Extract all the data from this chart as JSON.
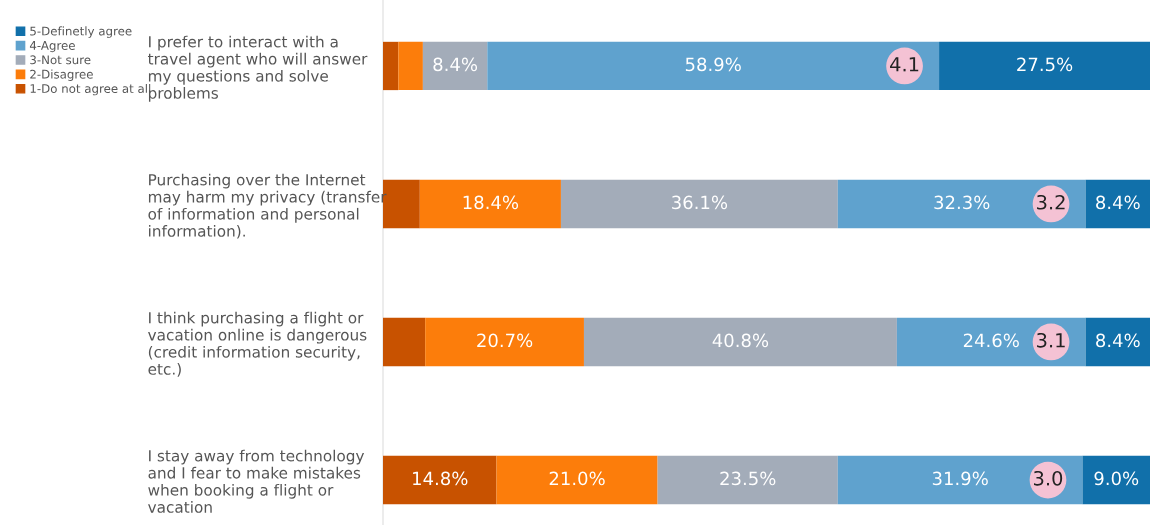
{
  "chart_data": {
    "type": "bar",
    "orientation": "horizontal",
    "stacked": true,
    "legend": "top left",
    "tick_labels": "y",
    "xlim": [
      0,
      100
    ],
    "categories": [
      "I prefer to interact with a\ntravel agent who will answer\nmy questions and solve\nproblems",
      "Purchasing over the Internet\nmay harm my privacy (transfer\nof information and personal\ninformation).",
      "I think purchasing a flight or\nvacation online is dangerous\n(credit information security,\netc.)",
      "I stay away from technology\nand I fear to make mistakes\nwhen booking a flight or\nvacation"
    ],
    "series": [
      {
        "name": "1-Do not agree at all",
        "color": "#c85200",
        "values": [
          2.0,
          4.8,
          5.5,
          14.8
        ],
        "value_labels": [
          null,
          null,
          null,
          "14.8%"
        ]
      },
      {
        "name": "2-Disagree",
        "color": "#fc7d0b",
        "values": [
          3.2,
          18.4,
          20.7,
          21.0
        ],
        "value_labels": [
          null,
          "18.4%",
          "20.7%",
          "21.0%"
        ]
      },
      {
        "name": "3-Not sure",
        "color": "#a3acb9",
        "values": [
          8.4,
          36.1,
          40.8,
          23.5
        ],
        "value_labels": [
          "8.4%",
          "36.1%",
          "40.8%",
          "23.5%"
        ]
      },
      {
        "name": "4-Agree",
        "color": "#5fa2ce",
        "values": [
          58.9,
          32.3,
          24.6,
          31.9
        ],
        "value_labels": [
          "58.9%",
          "32.3%",
          "24.6%",
          "31.9%"
        ]
      },
      {
        "name": "5-Definetly agree",
        "color": "#1170aa",
        "values": [
          27.5,
          8.4,
          8.4,
          9.0
        ],
        "value_labels": [
          "27.5%",
          "8.4%",
          "8.4%",
          "9.0%"
        ]
      }
    ],
    "annotations": [
      "4.1",
      "3.2",
      "3.1",
      "3.0"
    ]
  }
}
